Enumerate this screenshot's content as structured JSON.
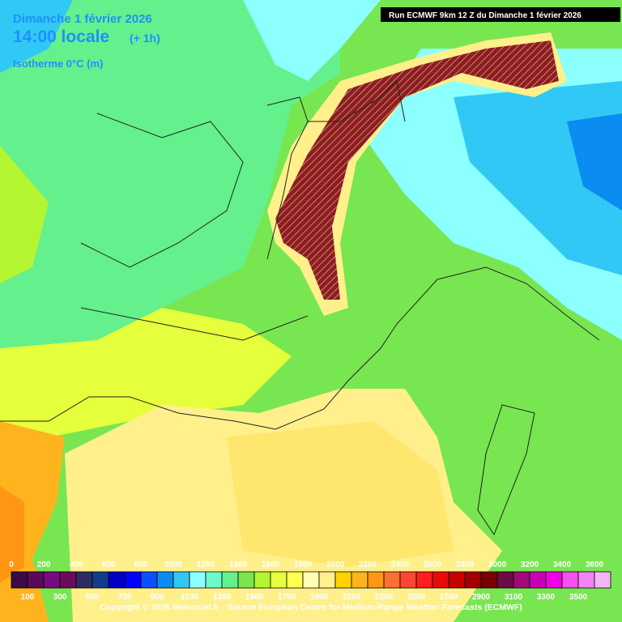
{
  "header": {
    "date": "Dimanche 1 février 2026",
    "time": "14:00 locale",
    "offset": "(+ 1h)",
    "field": "Isotherme 0°C (m)",
    "run": "Run ECMWF 9km 12 Z du Dimanche 1 février 2026"
  },
  "legend": {
    "labels": [
      0,
      100,
      200,
      300,
      400,
      500,
      600,
      700,
      800,
      900,
      1000,
      1100,
      1200,
      1300,
      1400,
      1500,
      1600,
      1700,
      1800,
      1900,
      2000,
      2100,
      2200,
      2300,
      2400,
      2500,
      2600,
      2700,
      2800,
      2900,
      3000,
      3100,
      3200,
      3300,
      3400,
      3500,
      3600
    ],
    "colors": [
      "#3c0a46",
      "#5a0a5a",
      "#780a82",
      "#6e0a5a",
      "#2d2d64",
      "#143c8c",
      "#0000c8",
      "#0000ff",
      "#0a50ff",
      "#0a8cf0",
      "#32c8f5",
      "#8cffff",
      "#6efac8",
      "#64f08c",
      "#78e650",
      "#b4f532",
      "#e6ff3c",
      "#ffff50",
      "#ffffb4",
      "#fff08c",
      "#ffd200",
      "#ffb41e",
      "#ff9614",
      "#ff6e32",
      "#ff4632",
      "#ff1e1e",
      "#e60a0a",
      "#c80000",
      "#a00000",
      "#780000",
      "#6e0a46",
      "#a00a78",
      "#c800b4",
      "#f000e6",
      "#f550f0",
      "#f582f5",
      "#f5b4f5"
    ]
  },
  "footer": {
    "copyright": "Copyright © 2026 Meteociel.fr - Source European Centre for Medium-Range Weather Forecasts (ECMWF)"
  }
}
